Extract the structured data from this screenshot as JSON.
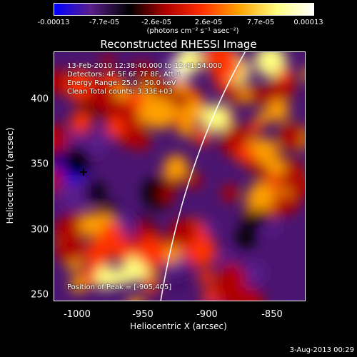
{
  "colorbar": {
    "tick_labels": [
      "-0.00013",
      "-7.7e-05",
      "-2.6e-05",
      "2.6e-05",
      "7.7e-05",
      "0.00013"
    ],
    "units": "(photons cm⁻² s⁻¹ asec⁻²)",
    "colors": [
      "#0000ff",
      "#5a1e8c",
      "#000000",
      "#b00000",
      "#ff3000",
      "#ffa000",
      "#ffff80",
      "#ffffff"
    ]
  },
  "plot": {
    "title": "Reconstructed RHESSI Image",
    "xlabel": "Heliocentric X (arcsec)",
    "ylabel": "Heliocentric Y (arcsec)",
    "x_ticks": [
      "-1000",
      "-950",
      "-900",
      "-850"
    ],
    "y_ticks": [
      "400",
      "350",
      "300",
      "250"
    ],
    "xlim": [
      -1018,
      -828
    ],
    "ylim": [
      241,
      428
    ],
    "limb_color": "#ffffff",
    "peak_marker_color": "#000000"
  },
  "annotations": {
    "time_range": "13-Feb-2010 12:38:40.000 to 12:41:54.000",
    "detectors": "Detectors: 4F 5F 6F 7F 8F, Att 1",
    "energy": "Energy Range: 25.0 - 50.0 keV",
    "clean": "Clean    Total counts: 3.33E+03",
    "peak": "Position of Peak = [-905,405]"
  },
  "footer": {
    "date": "3-Aug-2013 00:29"
  }
}
